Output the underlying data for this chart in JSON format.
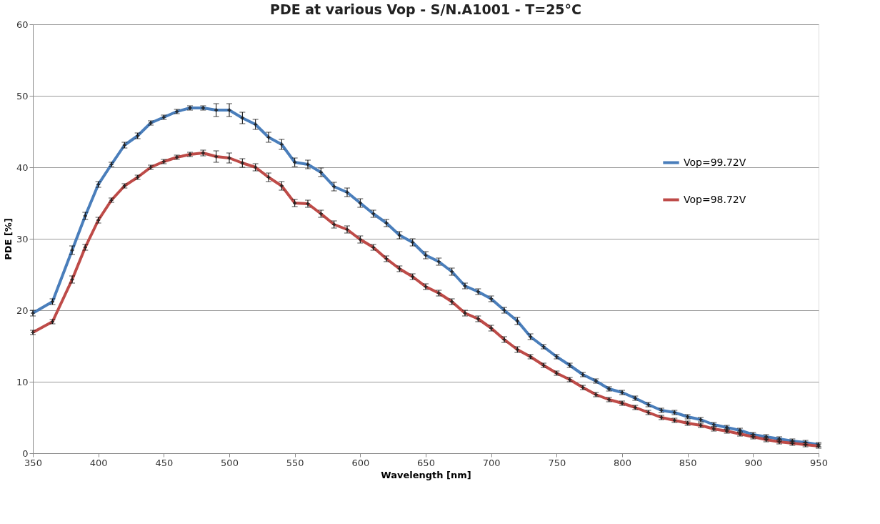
{
  "chart_data": {
    "type": "line",
    "title": "PDE at various Vop - S/N.A1001 - T=25°C",
    "xlabel": "Wavelength [nm]",
    "ylabel": "PDE [%]",
    "x": [
      350,
      365,
      380,
      390,
      400,
      410,
      420,
      430,
      440,
      450,
      460,
      470,
      480,
      490,
      500,
      510,
      520,
      530,
      540,
      550,
      560,
      570,
      580,
      590,
      600,
      610,
      620,
      630,
      640,
      650,
      660,
      670,
      680,
      690,
      700,
      710,
      720,
      730,
      740,
      750,
      760,
      770,
      780,
      790,
      800,
      810,
      820,
      830,
      840,
      850,
      860,
      870,
      880,
      890,
      900,
      910,
      920,
      930,
      940,
      950
    ],
    "series": [
      {
        "name": "Vop=99.72V",
        "color": "#4a7ebb",
        "values": [
          19.6,
          21.2,
          28.4,
          33.2,
          37.6,
          40.4,
          43.1,
          44.4,
          46.2,
          47.0,
          47.8,
          48.3,
          48.3,
          48.0,
          48.0,
          46.9,
          46.0,
          44.2,
          43.2,
          40.7,
          40.4,
          39.3,
          37.3,
          36.5,
          35.0,
          33.5,
          32.2,
          30.5,
          29.5,
          27.7,
          26.8,
          25.4,
          23.4,
          22.6,
          21.6,
          20.0,
          18.5,
          16.3,
          14.9,
          13.5,
          12.3,
          11.0,
          10.1,
          9.0,
          8.5,
          7.7,
          6.8,
          6.0,
          5.7,
          5.1,
          4.7,
          4.0,
          3.6,
          3.2,
          2.6,
          2.3,
          2.0,
          1.7,
          1.5,
          1.2
        ],
        "errors": [
          0.4,
          0.4,
          0.6,
          0.5,
          0.4,
          0.3,
          0.4,
          0.4,
          0.3,
          0.3,
          0.3,
          0.3,
          0.3,
          0.9,
          0.9,
          0.8,
          0.7,
          0.7,
          0.7,
          0.6,
          0.6,
          0.6,
          0.6,
          0.6,
          0.6,
          0.5,
          0.5,
          0.5,
          0.5,
          0.5,
          0.5,
          0.5,
          0.4,
          0.4,
          0.4,
          0.4,
          0.5,
          0.4,
          0.3,
          0.3,
          0.3,
          0.3,
          0.3,
          0.3,
          0.3,
          0.3,
          0.3,
          0.3,
          0.3,
          0.3,
          0.3,
          0.3,
          0.3,
          0.3,
          0.3,
          0.3,
          0.3,
          0.3,
          0.3,
          0.3
        ]
      },
      {
        "name": "Vop=98.72V",
        "color": "#be4b48",
        "values": [
          16.9,
          18.4,
          24.3,
          28.8,
          32.6,
          35.4,
          37.4,
          38.6,
          40.0,
          40.8,
          41.4,
          41.8,
          42.0,
          41.5,
          41.3,
          40.6,
          40.0,
          38.6,
          37.4,
          35.0,
          34.9,
          33.5,
          32.0,
          31.3,
          29.9,
          28.8,
          27.2,
          25.8,
          24.7,
          23.3,
          22.4,
          21.2,
          19.6,
          18.8,
          17.5,
          15.9,
          14.5,
          13.5,
          12.3,
          11.2,
          10.3,
          9.2,
          8.2,
          7.5,
          7.0,
          6.4,
          5.7,
          5.0,
          4.6,
          4.2,
          3.9,
          3.4,
          3.1,
          2.7,
          2.3,
          1.9,
          1.6,
          1.4,
          1.2,
          1.0
        ],
        "errors": [
          0.3,
          0.3,
          0.5,
          0.4,
          0.4,
          0.3,
          0.3,
          0.3,
          0.3,
          0.3,
          0.3,
          0.3,
          0.4,
          0.8,
          0.7,
          0.6,
          0.5,
          0.6,
          0.6,
          0.5,
          0.5,
          0.5,
          0.5,
          0.5,
          0.5,
          0.4,
          0.4,
          0.4,
          0.4,
          0.4,
          0.4,
          0.4,
          0.4,
          0.4,
          0.4,
          0.4,
          0.4,
          0.3,
          0.3,
          0.3,
          0.3,
          0.3,
          0.3,
          0.3,
          0.3,
          0.3,
          0.3,
          0.3,
          0.3,
          0.3,
          0.3,
          0.3,
          0.3,
          0.3,
          0.3,
          0.3,
          0.3,
          0.3,
          0.3,
          0.3
        ]
      }
    ],
    "xlim": [
      350,
      950
    ],
    "xticks": [
      350,
      400,
      450,
      500,
      550,
      600,
      650,
      700,
      750,
      800,
      850,
      900,
      950
    ],
    "ylim": [
      0,
      60
    ],
    "yticks": [
      0,
      10,
      20,
      30,
      40,
      50,
      60
    ],
    "grid": "y",
    "legend": "right",
    "marker": "cross",
    "line_style": "solid"
  }
}
